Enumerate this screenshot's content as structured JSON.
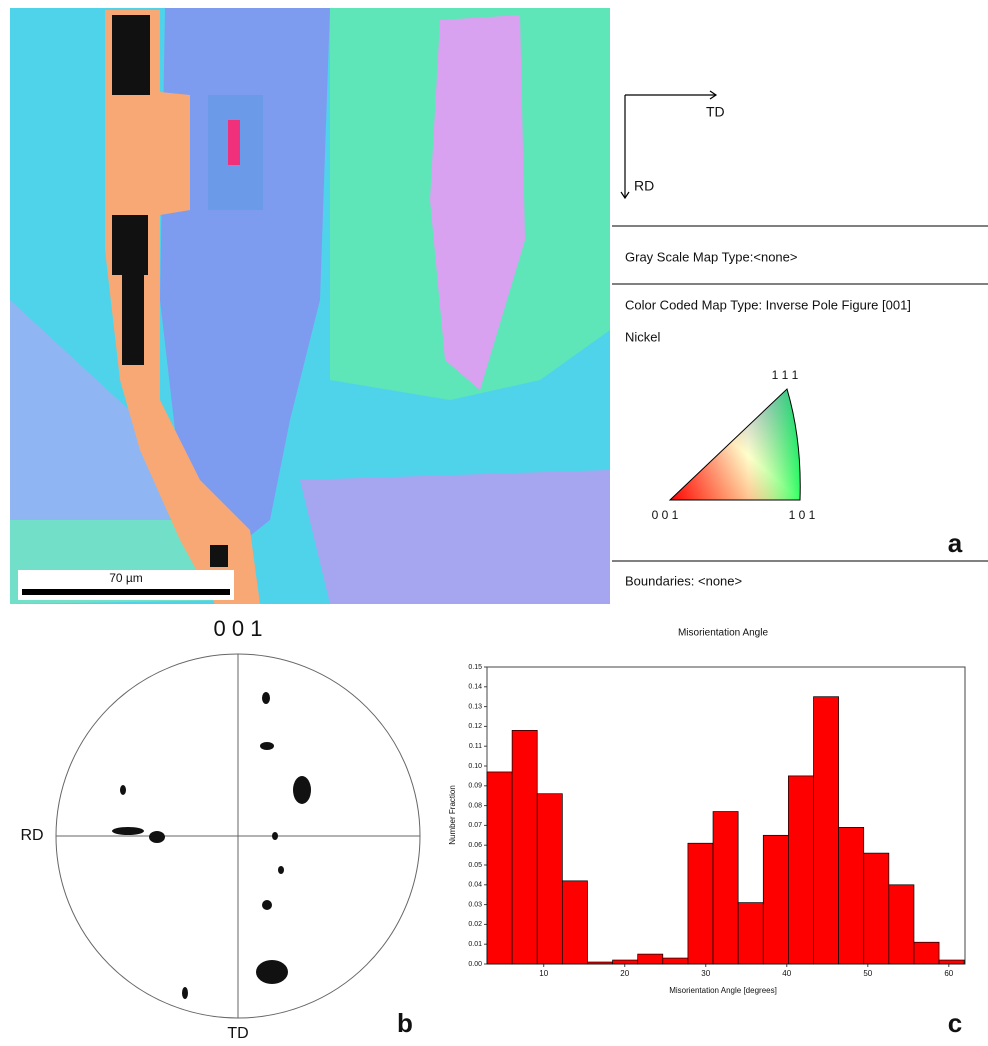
{
  "panel_a": {
    "scale_bar": "70 µm",
    "axis_x": "TD",
    "axis_y": "RD",
    "gray_scale": "Gray Scale Map Type:<none>",
    "color_coded": "Color Coded Map Type: Inverse Pole Figure [001]",
    "phase": "Nickel",
    "triangle": {
      "top": "1 1 1",
      "left": "0 0 1",
      "right": "1 0 1"
    },
    "boundaries": "Boundaries: <none>",
    "label": "a"
  },
  "panel_b": {
    "title": "0 0 1",
    "left": "RD",
    "bottom": "TD",
    "label": "b"
  },
  "chart_data": {
    "type": "histogram",
    "title": "Misorientation Angle",
    "x_label": "Misorientation Angle [degrees]",
    "y_label": "Number Fraction",
    "bins": [
      3,
      6.1,
      9.2,
      12.3,
      15.4,
      18.5,
      21.6,
      24.7,
      27.8,
      30.9,
      34,
      37.1,
      40.2,
      43.3,
      46.4,
      49.5,
      52.6,
      55.7,
      58.8,
      61.9
    ],
    "values": [
      0.097,
      0.118,
      0.086,
      0.042,
      0.001,
      0.002,
      0.005,
      0.003,
      0.061,
      0.077,
      0.031,
      0.065,
      0.095,
      0.135,
      0.069,
      0.056,
      0.04,
      0.011,
      0.002
    ],
    "color": "#ff0000",
    "xlim": [
      3,
      62
    ],
    "ylim": [
      0,
      0.15
    ],
    "xticks": [
      10,
      20,
      30,
      40,
      50,
      60
    ],
    "yticks": [
      {
        "value": 0,
        "label": "0.00"
      },
      {
        "value": 0.01,
        "label": "0.01"
      },
      {
        "value": 0.02,
        "label": "0.02"
      },
      {
        "value": 0.03,
        "label": "0.03"
      },
      {
        "value": 0.04,
        "label": "0.04"
      },
      {
        "value": 0.05,
        "label": "0.05"
      },
      {
        "value": 0.06,
        "label": "0.06"
      },
      {
        "value": 0.07,
        "label": "0.07"
      },
      {
        "value": 0.08,
        "label": "0.08"
      },
      {
        "value": 0.09,
        "label": "0.09"
      },
      {
        "value": 0.1,
        "label": "0.10"
      },
      {
        "value": 0.11,
        "label": "0.11"
      },
      {
        "value": 0.12,
        "label": "0.12"
      },
      {
        "value": 0.13,
        "label": "0.13"
      },
      {
        "value": 0.14,
        "label": "0.14"
      },
      {
        "value": 0.15,
        "label": "0.15"
      }
    ]
  },
  "panel_c": {
    "label": "c"
  }
}
